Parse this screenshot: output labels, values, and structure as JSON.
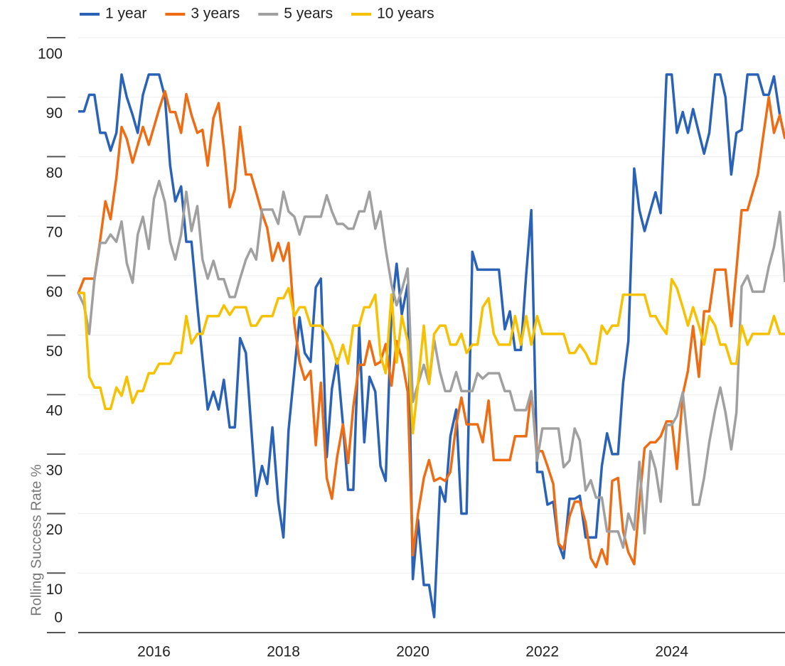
{
  "chart_data": {
    "type": "line",
    "ylabel": "Rolling Success Rate %",
    "x": [
      2014.83,
      2014.92,
      2015.0,
      2015.08,
      2015.17,
      2015.25,
      2015.33,
      2015.42,
      2015.5,
      2015.58,
      2015.67,
      2015.75,
      2015.83,
      2015.92,
      2016.0,
      2016.08,
      2016.17,
      2016.25,
      2016.33,
      2016.42,
      2016.5,
      2016.58,
      2016.67,
      2016.75,
      2016.83,
      2016.92,
      2017.0,
      2017.08,
      2017.17,
      2017.25,
      2017.33,
      2017.42,
      2017.5,
      2017.58,
      2017.67,
      2017.75,
      2017.83,
      2017.92,
      2018.0,
      2018.08,
      2018.17,
      2018.25,
      2018.33,
      2018.42,
      2018.5,
      2018.58,
      2018.67,
      2018.75,
      2018.83,
      2018.92,
      2019.0,
      2019.08,
      2019.17,
      2019.25,
      2019.33,
      2019.42,
      2019.5,
      2019.58,
      2019.67,
      2019.75,
      2019.83,
      2019.92,
      2020.0,
      2020.08,
      2020.17,
      2020.25,
      2020.33,
      2020.42,
      2020.5,
      2020.58,
      2020.67,
      2020.75,
      2020.83,
      2020.92,
      2021.0,
      2021.08,
      2021.17,
      2021.25,
      2021.33,
      2021.42,
      2021.5,
      2021.58,
      2021.67,
      2021.75,
      2021.83,
      2021.92,
      2022.0,
      2022.08,
      2022.17,
      2022.25,
      2022.33,
      2022.42,
      2022.5,
      2022.58,
      2022.67,
      2022.75,
      2022.83,
      2022.92,
      2023.0,
      2023.08,
      2023.17,
      2023.25,
      2023.33,
      2023.42,
      2023.5,
      2023.58,
      2023.67,
      2023.75,
      2023.83,
      2023.92,
      2024.0,
      2024.08,
      2024.17,
      2024.25,
      2024.33,
      2024.42,
      2024.5,
      2024.58,
      2024.67,
      2024.75,
      2024.83,
      2024.92,
      2025.0,
      2025.08,
      2025.17,
      2025.25,
      2025.33,
      2025.42,
      2025.5,
      2025.58,
      2025.67,
      2025.75
    ],
    "series": [
      {
        "name": "1 year",
        "color": "#2a62b8",
        "values": [
          87.6,
          87.6,
          90.4,
          90.4,
          84,
          84,
          81,
          84,
          93.8,
          90,
          87,
          84,
          90.4,
          93.8,
          93.8,
          93.8,
          90,
          78.5,
          72.5,
          75,
          65.7,
          65.7,
          55,
          46,
          37.5,
          40.5,
          37.5,
          42.5,
          34.5,
          34.5,
          49.5,
          47,
          35,
          23,
          28,
          25,
          34.5,
          22,
          16,
          34,
          44,
          53,
          47,
          45.5,
          58,
          59.5,
          29.5,
          41,
          46,
          35,
          24,
          24,
          51.5,
          32,
          43,
          40.5,
          28,
          25.5,
          54,
          62,
          53.5,
          58.5,
          9,
          19,
          8,
          8,
          2.6,
          24.5,
          22,
          33,
          37.5,
          20,
          20,
          64,
          61,
          61,
          61,
          61,
          61,
          51,
          54,
          47.5,
          47.5,
          60,
          71,
          27,
          27,
          21.5,
          22,
          15,
          12.5,
          22.5,
          22.5,
          23,
          16,
          16,
          16,
          28,
          33.5,
          30,
          30,
          42,
          49,
          78,
          71,
          67.5,
          71,
          74,
          70.5,
          93.8,
          93.8,
          84,
          87.5,
          84,
          88,
          84,
          80.5,
          84,
          93.8,
          93.8,
          90,
          77,
          84,
          84.5,
          93.8,
          93.8,
          93.8,
          90.4,
          90.4,
          93.5,
          87,
          83
        ]
      },
      {
        "name": "3 years",
        "color": "#ee6d14",
        "values": [
          57,
          59.5,
          59.5,
          59.5,
          66,
          72.5,
          69.5,
          76.5,
          85,
          83,
          79,
          82,
          85,
          82,
          85,
          88,
          91,
          87.5,
          87.5,
          84,
          90.5,
          87,
          84,
          84.5,
          78.5,
          86.5,
          89,
          81.5,
          71.5,
          74.5,
          85,
          77,
          77,
          74,
          70.5,
          68,
          62.5,
          65.5,
          62.5,
          65.5,
          52,
          45.5,
          42.5,
          44,
          31.5,
          42,
          26,
          22.5,
          29.5,
          35,
          28.5,
          38,
          45,
          45,
          49,
          45,
          45.5,
          48.5,
          41.5,
          49,
          46,
          40.5,
          13,
          20,
          26,
          29,
          25.5,
          26,
          25.5,
          27,
          35,
          39.5,
          35,
          35,
          35,
          32,
          39,
          29,
          29,
          29,
          29,
          33,
          33,
          33,
          40.5,
          30.5,
          30.5,
          28,
          25,
          15,
          14,
          19.5,
          22,
          22,
          18.5,
          12.5,
          11,
          14,
          11.5,
          25.5,
          26,
          17,
          13.5,
          11.5,
          22,
          31,
          32,
          32,
          33,
          35.5,
          35.5,
          27.5,
          40,
          44,
          51.5,
          43,
          54,
          54,
          61,
          61,
          61,
          51.5,
          61,
          71,
          71,
          74,
          77,
          84,
          90,
          84,
          87,
          83
        ]
      },
      {
        "name": "5 years",
        "color": "#a0a0a0",
        "values": [
          57.1,
          55,
          50.2,
          59.4,
          65.5,
          65.5,
          66.9,
          65.7,
          69.1,
          62.1,
          58.8,
          66.9,
          69.9,
          64.5,
          72.9,
          75.9,
          72.3,
          65.7,
          62.7,
          66.9,
          74.1,
          67.5,
          71.7,
          62.7,
          59.5,
          62.5,
          59.4,
          59.4,
          56.4,
          56.4,
          59.5,
          62.7,
          64.5,
          62.7,
          71.1,
          71.1,
          71.1,
          68.7,
          74.1,
          70.8,
          69.9,
          66.9,
          69.9,
          69.9,
          69.9,
          69.9,
          73.5,
          70.8,
          68.7,
          68.7,
          67.9,
          67.9,
          70.8,
          70.8,
          74.1,
          67.9,
          70.8,
          64.5,
          58.5,
          55,
          57.6,
          61.2,
          38.8,
          41.8,
          45,
          41.8,
          49.2,
          43.8,
          40.6,
          40.6,
          43.8,
          40.6,
          40.6,
          40.6,
          43.6,
          42.7,
          43.6,
          43.6,
          43.6,
          40.6,
          40.6,
          37.4,
          37.4,
          37.4,
          40.6,
          28.9,
          34.3,
          34.3,
          34.3,
          34.3,
          27.8,
          28.9,
          34.3,
          32.3,
          23.9,
          25.6,
          22.7,
          22.7,
          17,
          17,
          17,
          14.3,
          20,
          17.3,
          28.7,
          16.7,
          30.5,
          27.5,
          22,
          34.9,
          34.9,
          36.4,
          40.4,
          31.7,
          21.5,
          21.5,
          26,
          32,
          37.3,
          41.2,
          37,
          30.8,
          37,
          58.2,
          60,
          57.3,
          57.3,
          57.3,
          61.5,
          64.8,
          70.7,
          58.9
        ]
      },
      {
        "name": "10 years",
        "color": "#f6c100",
        "values": [
          57.1,
          57.1,
          43,
          41.2,
          41.2,
          37.6,
          37.6,
          41.2,
          39.8,
          43,
          38.6,
          40.6,
          40.6,
          43.6,
          43.6,
          45.2,
          45.2,
          45.2,
          47,
          47,
          53.2,
          48.6,
          50.2,
          50.2,
          53.2,
          53.2,
          53.2,
          55,
          53.4,
          54.7,
          54.7,
          54.7,
          51.6,
          51.6,
          53.2,
          53.2,
          53.2,
          56.2,
          56.2,
          57.9,
          53.2,
          54.7,
          54.7,
          51.6,
          51.6,
          51.6,
          50.2,
          48.4,
          45.2,
          48.4,
          45.2,
          51.6,
          51.6,
          54.7,
          54.7,
          56.8,
          46.6,
          43.6,
          56.8,
          45.4,
          53.2,
          49,
          33.5,
          41.8,
          51.6,
          41.8,
          50.2,
          51.6,
          51.6,
          48.4,
          48.4,
          50.2,
          47,
          48.4,
          48.4,
          54.7,
          56.2,
          50.2,
          48.4,
          48.4,
          48.4,
          53.2,
          48.4,
          53.2,
          48.4,
          53.2,
          50.2,
          50.2,
          50.2,
          50.2,
          50.2,
          47,
          47,
          48.4,
          47,
          45.2,
          45.2,
          51.6,
          50.2,
          51.6,
          51.6,
          56.8,
          56.8,
          56.8,
          56.8,
          56.8,
          53.2,
          53.2,
          51.6,
          50.2,
          59.4,
          57.9,
          54.7,
          51.6,
          54.7,
          51.6,
          48.4,
          53.2,
          51.6,
          48.4,
          48.4,
          45.2,
          45.2,
          51.6,
          48.4,
          50.2,
          50.2,
          50.2,
          50.2,
          53.2,
          50.2,
          50.2
        ]
      }
    ],
    "xlim": [
      2014.83,
      2025.75
    ],
    "xticks": [
      2016,
      2018,
      2020,
      2022,
      2024
    ],
    "ylim": [
      0,
      100
    ],
    "yticks": [
      0,
      10,
      20,
      30,
      40,
      50,
      60,
      70,
      80,
      90,
      100
    ],
    "grid": true,
    "legend": "top-left"
  }
}
